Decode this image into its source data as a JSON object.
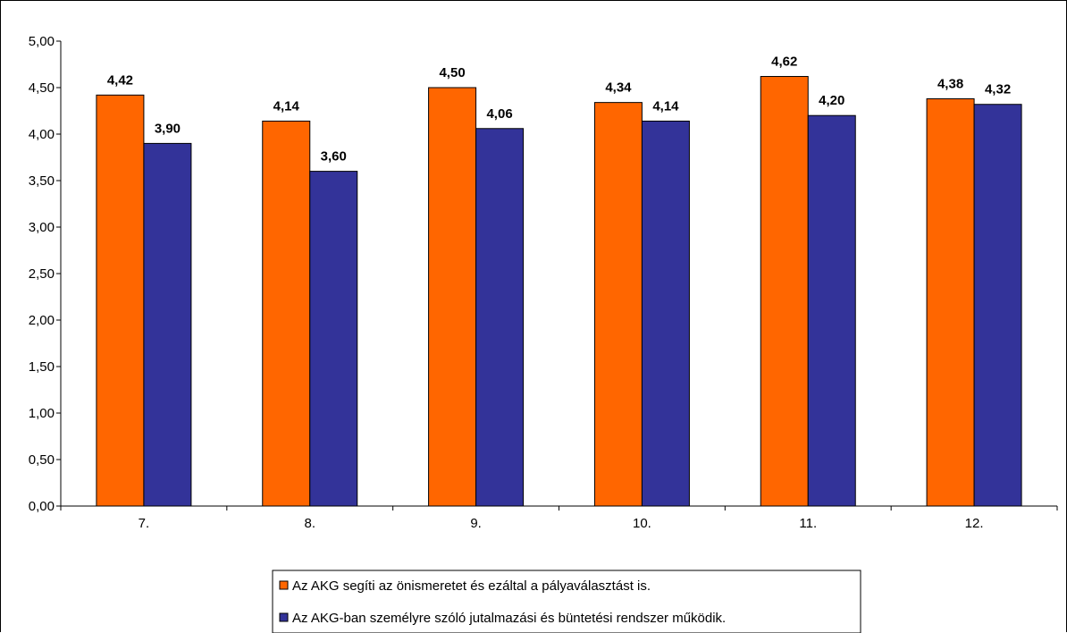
{
  "chart_data": {
    "type": "bar",
    "categories": [
      "7.",
      "8.",
      "9.",
      "10.",
      "11.",
      "12."
    ],
    "series": [
      {
        "name": "Az AKG segíti az önismeretet és ezáltal a pályaválasztást is.",
        "values": [
          4.42,
          4.14,
          4.5,
          4.34,
          4.62,
          4.38
        ],
        "data_labels": [
          "4,42",
          "4,14",
          "4,50",
          "4,34",
          "4,62",
          "4,38"
        ],
        "color": "#FF6600"
      },
      {
        "name": "Az AKG-ban személyre szóló jutalmazási és büntetési rendszer működik.",
        "values": [
          3.9,
          3.6,
          4.06,
          4.14,
          4.2,
          4.32
        ],
        "data_labels": [
          "3,90",
          "3,60",
          "4,06",
          "4,14",
          "4,20",
          "4,32"
        ],
        "color": "#333399"
      }
    ],
    "yticks": [
      0,
      0.5,
      1,
      1.5,
      2,
      2.5,
      3,
      3.5,
      4,
      4.5,
      5
    ],
    "ytick_labels": [
      "0,00",
      "0,50",
      "1,00",
      "1,50",
      "2,00",
      "2,50",
      "3,00",
      "3,50",
      "4,00",
      "4,50",
      "5,00"
    ],
    "ylim": [
      0,
      5
    ],
    "grid": false,
    "legend_position": "bottom",
    "title": "",
    "xlabel": "",
    "ylabel": ""
  }
}
